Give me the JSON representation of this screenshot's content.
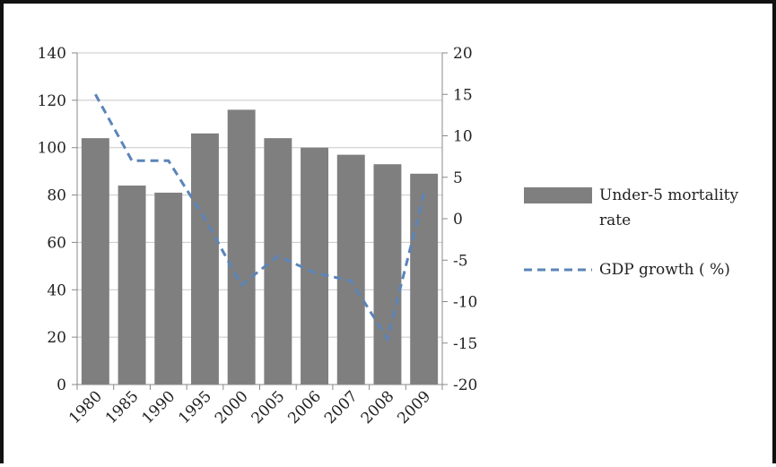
{
  "chart_data": {
    "type": "bar",
    "categories": [
      "1980",
      "1985",
      "1990",
      "1995",
      "2000",
      "2005",
      "2006",
      "2007",
      "2008",
      "2009"
    ],
    "series": [
      {
        "name": "Under-5 mortality rate",
        "type": "bar",
        "axis": "left",
        "values": [
          104,
          84,
          81,
          106,
          116,
          104,
          100,
          97,
          93,
          89
        ],
        "color": "#7f7f7f"
      },
      {
        "name": "GDP growth ( %)",
        "type": "line",
        "axis": "right",
        "style": "dashed",
        "values": [
          15,
          7,
          7,
          0,
          -8,
          -4.5,
          -6.5,
          -7.5,
          -14.5,
          3
        ],
        "color": "#5b84b8"
      }
    ],
    "y_left": {
      "ticks": [
        "0",
        "20",
        "40",
        "60",
        "80",
        "100",
        "120",
        "140"
      ],
      "ylim": [
        0,
        140
      ]
    },
    "y_right": {
      "ticks": [
        "-20",
        "-15",
        "-10",
        "-5",
        "0",
        "5",
        "10",
        "15",
        "20"
      ],
      "ylim": [
        -20,
        20
      ]
    },
    "grid": true,
    "legend": "right",
    "legend_lines": [
      [
        "Under-5 mortality",
        "rate"
      ],
      [
        "GDP growth ( %)"
      ]
    ]
  }
}
